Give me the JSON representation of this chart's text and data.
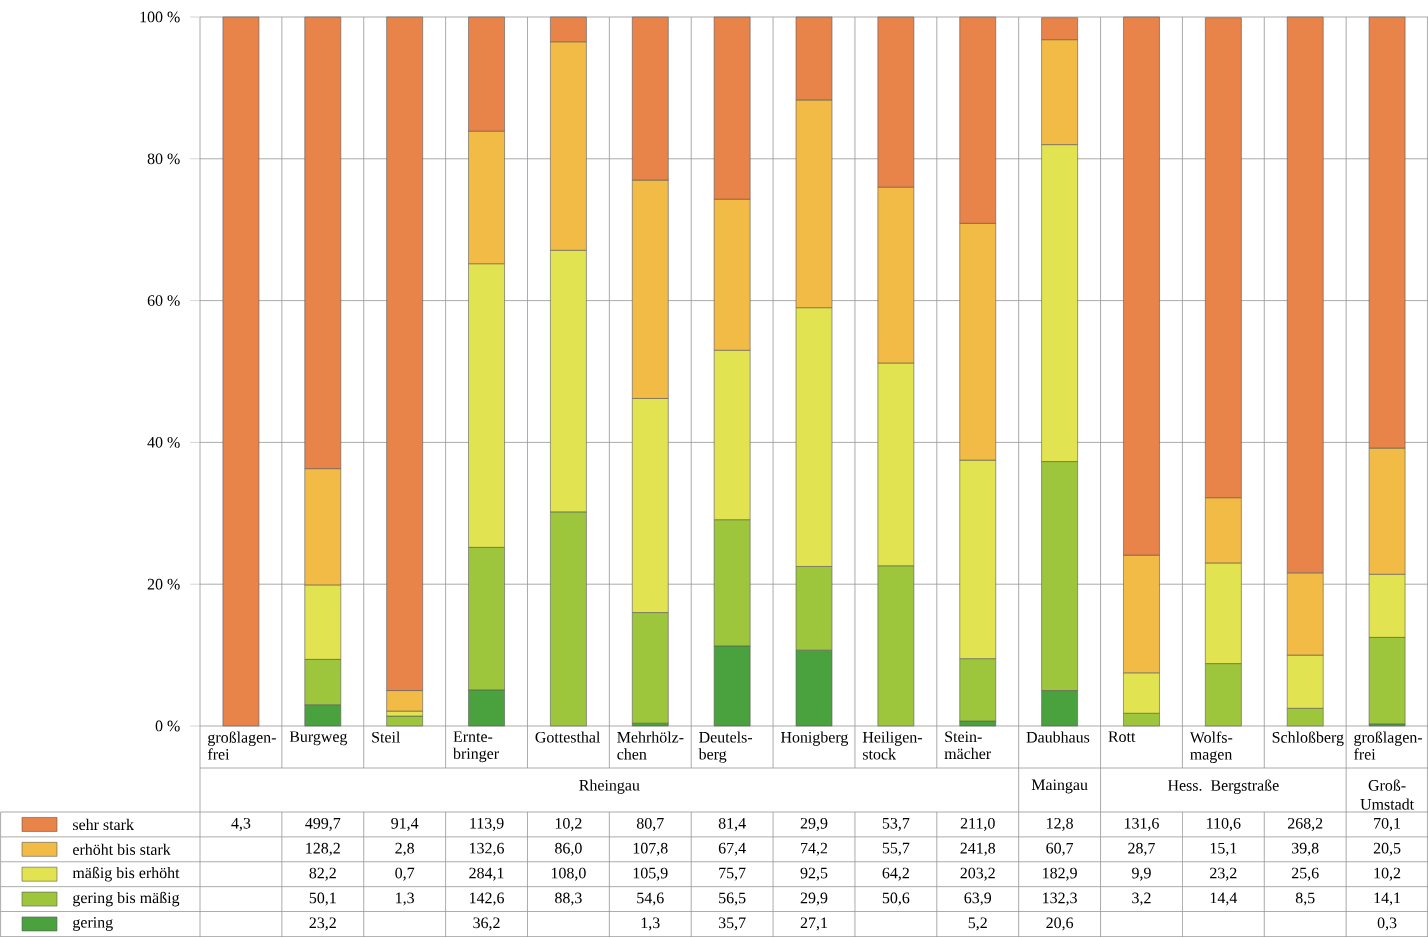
{
  "chart_data": [
    {
      "type": "bar",
      "stacked": true,
      "categories": [
        "großlagen-frei",
        "Burgweg",
        "Steil",
        "Ernte-bringer",
        "Gottesthal",
        "Mehrhölz-chen",
        "Deutels-berg",
        "Honigberg",
        "Heiligen-stock",
        "Stein-mächer",
        "Daubhaus",
        "Rott",
        "Wolfs-magen",
        "Schloßberg",
        "großlagen-frei"
      ],
      "annotations": [
        "Rheingau",
        "Maingau",
        "Hess. Bergstraße",
        "Groß-Umstadt"
      ],
      "ylim": [
        0,
        100
      ],
      "yticks": [
        {
          "value": 0,
          "label": "0 %"
        },
        {
          "value": 20,
          "label": "20 %"
        },
        {
          "value": 40,
          "label": "40 %"
        },
        {
          "value": 60,
          "label": "60 %"
        },
        {
          "value": 80,
          "label": "80 %"
        },
        {
          "value": 100,
          "label": "100 %"
        }
      ],
      "grid": "y",
      "series": [
        {
          "color": "#4aa23f",
          "values": [
            null,
            3.0,
            null,
            5.1,
            null,
            0.4,
            11.3,
            10.7,
            null,
            0.7,
            5.0,
            null,
            null,
            null,
            0.3
          ]
        },
        {
          "color": "#9dc63c",
          "values": [
            null,
            6.4,
            1.4,
            20.1,
            30.2,
            15.6,
            17.8,
            11.8,
            22.6,
            8.8,
            32.3,
            1.8,
            8.8,
            2.5,
            12.2
          ]
        },
        {
          "color": "#e2e350",
          "values": [
            null,
            10.5,
            0.7,
            40.0,
            36.9,
            30.2,
            23.9,
            36.5,
            28.6,
            28.0,
            44.7,
            5.7,
            14.2,
            7.5,
            8.9
          ]
        },
        {
          "color": "#f2bb45",
          "values": [
            null,
            16.4,
            2.9,
            18.7,
            29.4,
            30.8,
            21.3,
            29.3,
            24.8,
            33.4,
            14.8,
            16.6,
            9.2,
            11.6,
            17.8
          ]
        },
        {
          "color": "#e8834a",
          "values": [
            100,
            63.7,
            95.0,
            16.1,
            3.5,
            23.0,
            25.7,
            11.7,
            24.0,
            29.1,
            3.1,
            75.9,
            67.7,
            78.4,
            60.8
          ]
        }
      ]
    },
    {
      "type": "other",
      "legend": "bottom left",
      "series": [
        {
          "name": "sehr stark",
          "color": "#e8834a"
        },
        {
          "name": "erhöht bis stark",
          "color": "#f2bb45"
        },
        {
          "name": "mäßig bis erhöht",
          "color": "#e2e350"
        },
        {
          "name": "gering bis mäßig",
          "color": "#9dc63c"
        },
        {
          "name": "gering",
          "color": "#4aa23f"
        }
      ],
      "cell_labels": [
        [
          "4,3",
          "499,7",
          "91,4",
          "113,9",
          "10,2",
          "80,7",
          "81,4",
          "29,9",
          "53,7",
          "211,0",
          "12,8",
          "131,6",
          "110,6",
          "268,2",
          "70,1"
        ],
        [
          null,
          "128,2",
          "2,8",
          "132,6",
          "86,0",
          "107,8",
          "67,4",
          "74,2",
          "55,7",
          "241,8",
          "60,7",
          "28,7",
          "15,1",
          "39,8",
          "20,5"
        ],
        [
          null,
          "82,2",
          "0,7",
          "284,1",
          "108,0",
          "105,9",
          "75,7",
          "92,5",
          "64,2",
          "203,2",
          "182,9",
          "9,9",
          "23,2",
          "25,6",
          "10,2"
        ],
        [
          null,
          "50,1",
          "1,3",
          "142,6",
          "88,3",
          "54,6",
          "56,5",
          "29,9",
          "50,6",
          "63,9",
          "132,3",
          "3,2",
          "14,4",
          "8,5",
          "14,1"
        ],
        [
          null,
          "23,2",
          null,
          "36,2",
          null,
          "1,3",
          "35,7",
          "27,1",
          null,
          "5,2",
          "20,6",
          null,
          null,
          null,
          "0,3"
        ]
      ]
    }
  ]
}
